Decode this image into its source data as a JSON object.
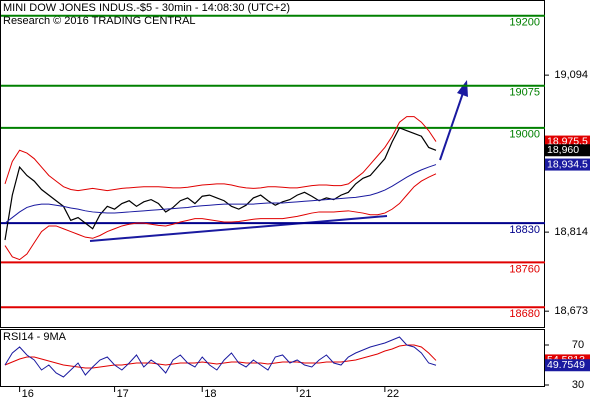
{
  "chart_data": {
    "type": "line",
    "title": "MINI DOW JONES INDUS.-$5 - 30min - 14:08:30 (UTC+2)",
    "subtitle": "Research © 2016 TRADING CENTRAL",
    "categories": [
      null,
      null,
      "16",
      null,
      null,
      null,
      null,
      null,
      null,
      null,
      null,
      null,
      null,
      null,
      null,
      "17",
      null,
      null,
      null,
      null,
      null,
      null,
      null,
      null,
      null,
      null,
      null,
      "18",
      null,
      null,
      null,
      null,
      null,
      null,
      null,
      null,
      null,
      null,
      null,
      null,
      "21",
      null,
      null,
      null,
      null,
      null,
      null,
      null,
      null,
      null,
      null,
      null,
      "22",
      null,
      null,
      null,
      null,
      null,
      null,
      null
    ],
    "ylim": [
      18643,
      19228
    ],
    "yticks": [
      {
        "value": 19094,
        "label": "19,094"
      },
      {
        "value": 18814,
        "label": "18,814"
      },
      {
        "value": 18673,
        "label": "18,673"
      }
    ],
    "levels": [
      {
        "value": 19200,
        "color": "#008000"
      },
      {
        "value": 19075,
        "color": "#008000"
      },
      {
        "value": 19000,
        "color": "#008000"
      },
      {
        "value": 18830,
        "color": "#00008b"
      },
      {
        "value": 18760,
        "color": "#e00000"
      },
      {
        "value": 18680,
        "color": "#e00000"
      }
    ],
    "series": [
      {
        "color": "#e00000",
        "last_label": "18,975.5",
        "values": [
          18900,
          18940,
          18960,
          18955,
          18945,
          18930,
          18915,
          18905,
          18895,
          18890,
          18888,
          18890,
          18892,
          18890,
          18888,
          18890,
          18892,
          18893,
          18894,
          18895,
          18895,
          18895,
          18894,
          18893,
          18893,
          18894,
          18896,
          18898,
          18899,
          18900,
          18900,
          18898,
          18895,
          18893,
          18892,
          18893,
          18895,
          18895,
          18894,
          18893,
          18893,
          18895,
          18897,
          18898,
          18898,
          18897,
          18897,
          18900,
          18910,
          18920,
          18935,
          18950,
          18965,
          18985,
          19010,
          19020,
          19020,
          19010,
          18995,
          18975.5
        ]
      },
      {
        "color": "#e00000",
        "values": [
          18790,
          18770,
          18765,
          18775,
          18795,
          18815,
          18825,
          18825,
          18820,
          18815,
          18810,
          18805,
          18803,
          18808,
          18815,
          18820,
          18825,
          18828,
          18830,
          18830,
          18828,
          18826,
          18825,
          18828,
          18832,
          18835,
          18838,
          18838,
          18836,
          18834,
          18832,
          18832,
          18833,
          18835,
          18837,
          18838,
          18838,
          18838,
          18838,
          18840,
          18842,
          18845,
          18848,
          18850,
          18850,
          18850,
          18851,
          18852,
          18850,
          18848,
          18845,
          18845,
          18848,
          18855,
          18865,
          18880,
          18895,
          18905,
          18912,
          18918
        ]
      },
      {
        "color": "#000000",
        "last_label": "18,960",
        "values": [
          18800,
          18880,
          18930,
          18915,
          18905,
          18890,
          18880,
          18870,
          18860,
          18835,
          18840,
          18830,
          18820,
          18845,
          18860,
          18855,
          18865,
          18870,
          18860,
          18868,
          18872,
          18865,
          18850,
          18858,
          18870,
          18875,
          18865,
          18878,
          18880,
          18875,
          18870,
          18860,
          18855,
          18862,
          18875,
          18880,
          18870,
          18862,
          18868,
          18872,
          18880,
          18885,
          18878,
          18870,
          18875,
          18872,
          18880,
          18885,
          18900,
          18910,
          18915,
          18930,
          18945,
          18975,
          19000,
          18995,
          18990,
          18985,
          18965,
          18960
        ]
      },
      {
        "color": "#1a1aa0",
        "last_label": "18,934.5",
        "values": [
          18830,
          18840,
          18850,
          18858,
          18862,
          18864,
          18864,
          18862,
          18860,
          18857,
          18855,
          18852,
          18850,
          18849,
          18848,
          18848,
          18849,
          18850,
          18851,
          18852,
          18853,
          18854,
          18855,
          18856,
          18857,
          18858,
          18860,
          18861,
          18862,
          18863,
          18864,
          18864,
          18864,
          18864,
          18864,
          18865,
          18866,
          18866,
          18866,
          18867,
          18868,
          18869,
          18870,
          18871,
          18872,
          18873,
          18874,
          18875,
          18876,
          18878,
          18880,
          18884,
          18889,
          18896,
          18904,
          18912,
          18919,
          18925,
          18930,
          18934.5
        ]
      }
    ],
    "rsi": {
      "title": "RSI14 - 9MA",
      "ylim": [
        28,
        85
      ],
      "yticks": [
        70,
        30
      ],
      "series": [
        {
          "color": "#e00000",
          "values": [
            50,
            53,
            56,
            58,
            58,
            56,
            54,
            52,
            50,
            49,
            48,
            47,
            47,
            48,
            49,
            50,
            50,
            51,
            52,
            52,
            52,
            51,
            50,
            51,
            52,
            52,
            52,
            53,
            52,
            51,
            52,
            53,
            53,
            52,
            52,
            52,
            51,
            52,
            53,
            53,
            53,
            52,
            52,
            52,
            53,
            53,
            53,
            54,
            55,
            57,
            59,
            61,
            64,
            66,
            69,
            70,
            70,
            68,
            62,
            54.5813
          ]
        },
        {
          "color": "#1a1aa0",
          "values": [
            50,
            62,
            68,
            60,
            55,
            45,
            50,
            42,
            38,
            45,
            52,
            40,
            48,
            55,
            58,
            50,
            45,
            52,
            60,
            48,
            55,
            50,
            42,
            55,
            60,
            52,
            48,
            58,
            50,
            45,
            55,
            62,
            52,
            48,
            55,
            50,
            45,
            58,
            60,
            52,
            55,
            50,
            48,
            55,
            60,
            52,
            50,
            58,
            62,
            65,
            68,
            70,
            72,
            75,
            78,
            70,
            68,
            62,
            52,
            49.7549
          ]
        }
      ]
    }
  }
}
